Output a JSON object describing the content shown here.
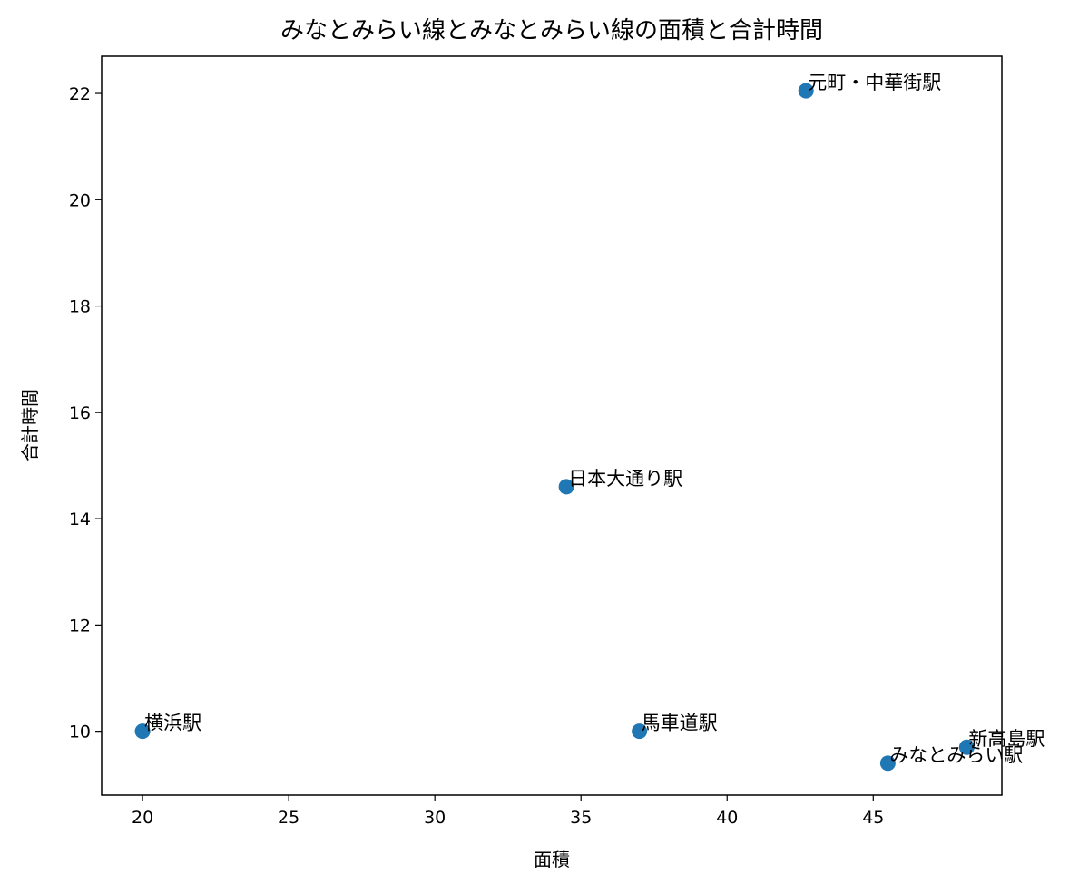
{
  "chart_data": {
    "type": "scatter",
    "title": "みなとみらい線とみなとみらい線の面積と合計時間",
    "xlabel": "面積",
    "ylabel": "合計時間",
    "xlim": [
      18.6,
      49.4
    ],
    "ylim": [
      8.8,
      22.7
    ],
    "xticks": [
      20,
      25,
      30,
      35,
      40,
      45
    ],
    "yticks": [
      10,
      12,
      14,
      16,
      18,
      20,
      22
    ],
    "grid": false,
    "marker_color": "#1f77b4",
    "points": [
      {
        "label": "元町・中華街駅",
        "x": 42.7,
        "y": 22.05
      },
      {
        "label": "日本大通り駅",
        "x": 34.5,
        "y": 14.6
      },
      {
        "label": "横浜駅",
        "x": 20.0,
        "y": 10.0
      },
      {
        "label": "馬車道駅",
        "x": 37.0,
        "y": 10.0
      },
      {
        "label": "新高島駅",
        "x": 48.2,
        "y": 9.7
      },
      {
        "label": "みなとみらい駅",
        "x": 45.5,
        "y": 9.4
      }
    ]
  }
}
